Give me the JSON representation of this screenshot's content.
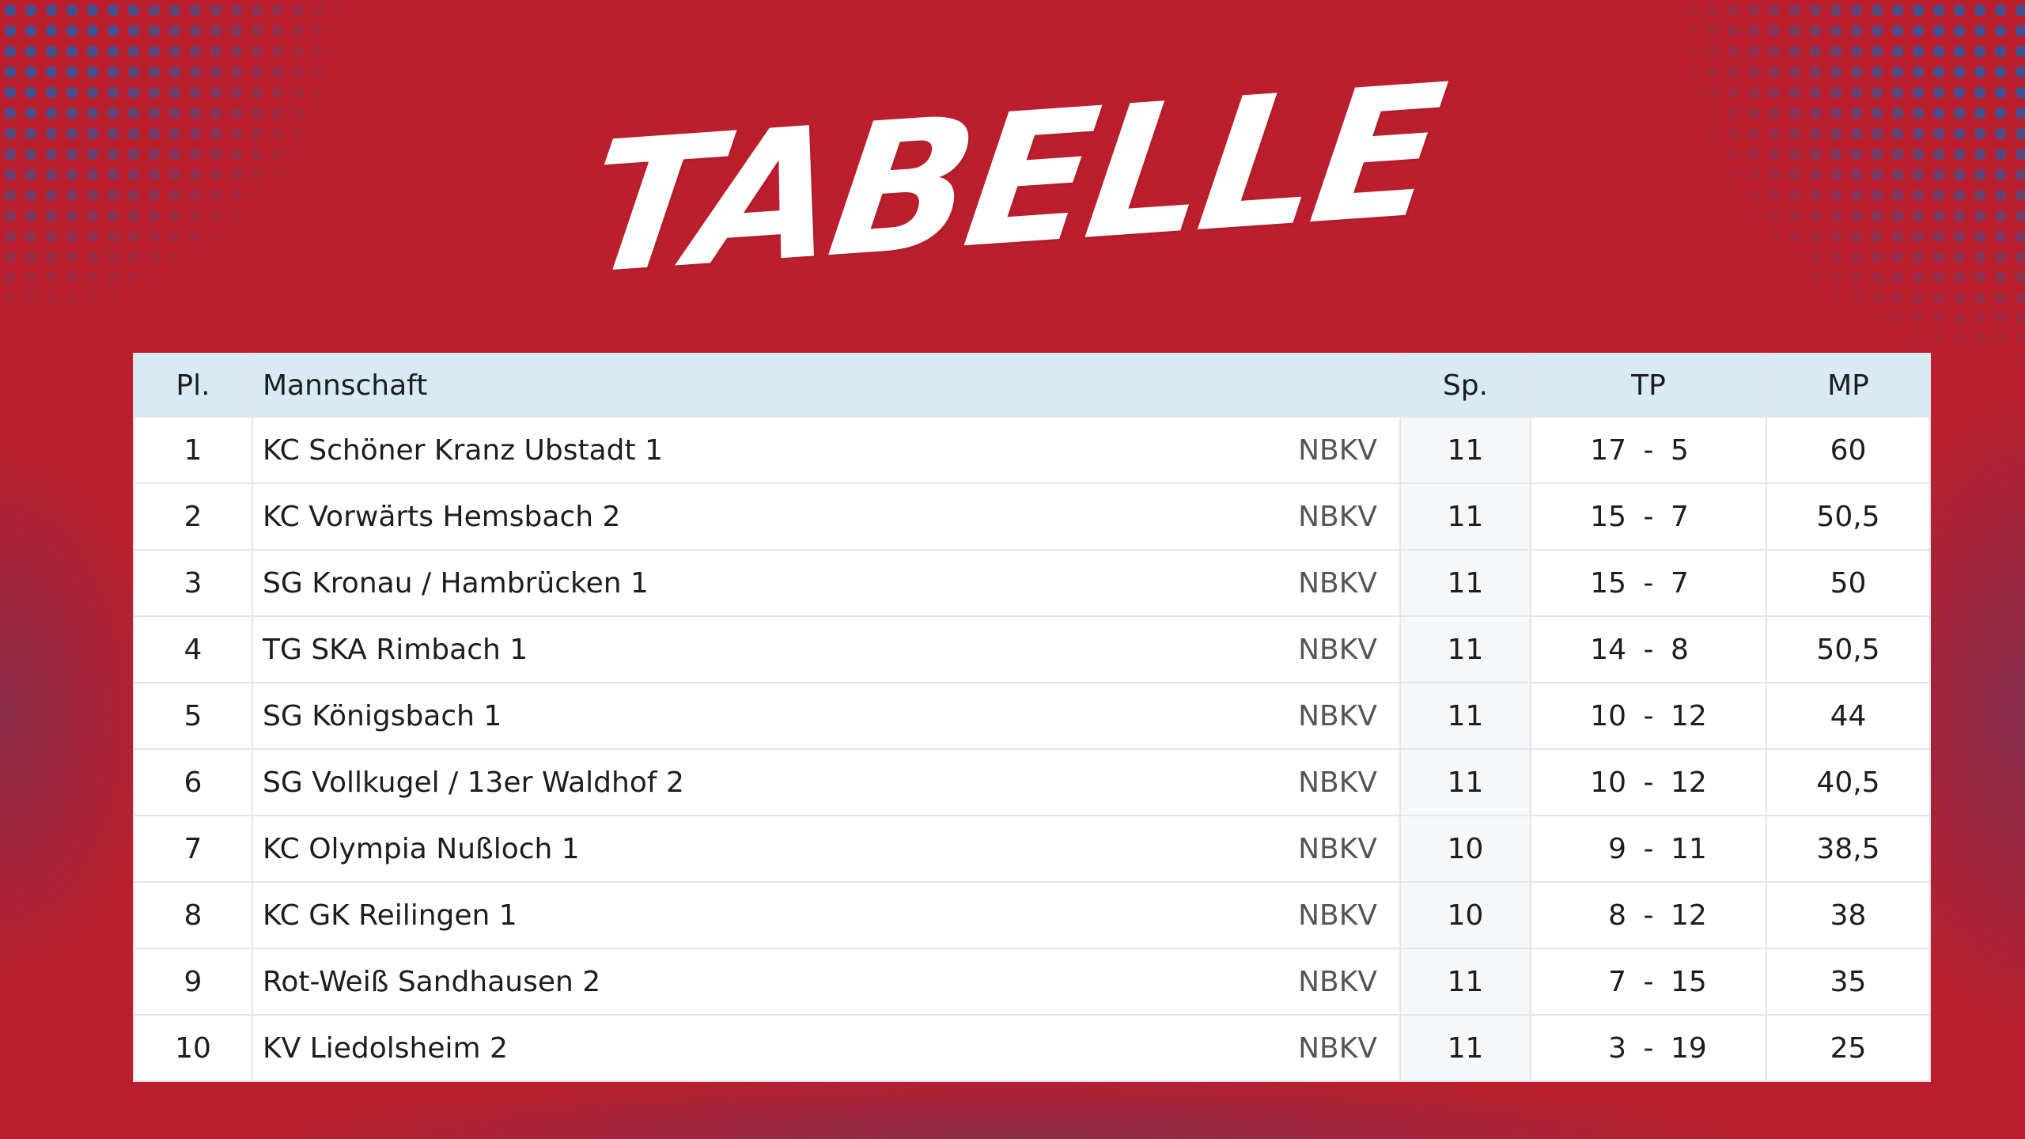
{
  "title": "TABELLE",
  "colors": {
    "background": "#bb1f2d",
    "header": "#d8ebf4",
    "dots": "#2d5aa0"
  },
  "table": {
    "headers": {
      "place": "Pl.",
      "team": "Mannschaft",
      "games": "Sp.",
      "tp": "TP",
      "mp": "MP"
    },
    "rows": [
      {
        "place": "1",
        "team": "KC Schöner Kranz Ubstadt 1",
        "fed": "NBKV",
        "games": "11",
        "tp_won": "17",
        "sep": "-",
        "tp_lost": "5",
        "mp": "60"
      },
      {
        "place": "2",
        "team": "KC Vorwärts Hemsbach 2",
        "fed": "NBKV",
        "games": "11",
        "tp_won": "15",
        "sep": "-",
        "tp_lost": "7",
        "mp": "50,5"
      },
      {
        "place": "3",
        "team": "SG Kronau / Hambrücken 1",
        "fed": "NBKV",
        "games": "11",
        "tp_won": "15",
        "sep": "-",
        "tp_lost": "7",
        "mp": "50"
      },
      {
        "place": "4",
        "team": "TG SKA Rimbach 1",
        "fed": "NBKV",
        "games": "11",
        "tp_won": "14",
        "sep": "-",
        "tp_lost": "8",
        "mp": "50,5"
      },
      {
        "place": "5",
        "team": "SG Königsbach 1",
        "fed": "NBKV",
        "games": "11",
        "tp_won": "10",
        "sep": "-",
        "tp_lost": "12",
        "mp": "44"
      },
      {
        "place": "6",
        "team": "SG Vollkugel / 13er Waldhof 2",
        "fed": "NBKV",
        "games": "11",
        "tp_won": "10",
        "sep": "-",
        "tp_lost": "12",
        "mp": "40,5"
      },
      {
        "place": "7",
        "team": "KC Olympia Nußloch 1",
        "fed": "NBKV",
        "games": "10",
        "tp_won": "9",
        "sep": "-",
        "tp_lost": "11",
        "mp": "38,5"
      },
      {
        "place": "8",
        "team": "KC GK Reilingen 1",
        "fed": "NBKV",
        "games": "10",
        "tp_won": "8",
        "sep": "-",
        "tp_lost": "12",
        "mp": "38"
      },
      {
        "place": "9",
        "team": "Rot-Weiß Sandhausen 2",
        "fed": "NBKV",
        "games": "11",
        "tp_won": "7",
        "sep": "-",
        "tp_lost": "15",
        "mp": "35"
      },
      {
        "place": "10",
        "team": "KV Liedolsheim 2",
        "fed": "NBKV",
        "games": "11",
        "tp_won": "3",
        "sep": "-",
        "tp_lost": "19",
        "mp": "25"
      }
    ]
  }
}
